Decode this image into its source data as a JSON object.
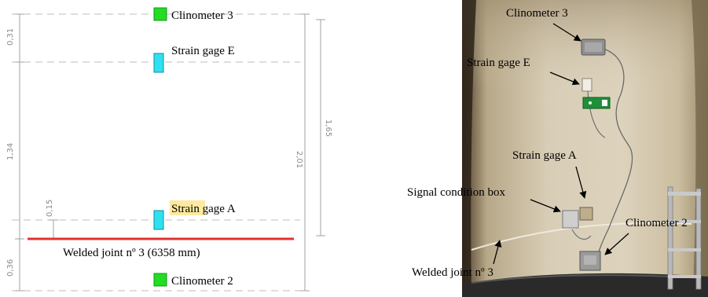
{
  "drawing": {
    "labels": {
      "clinometer_3": "Clinometer 3",
      "strain_gage_e": "Strain gage E",
      "strain_gage_a_highlight": "Strain",
      "strain_gage_a_rest": " gage A",
      "welded_joint": "Welded joint nº 3 (6358 mm)",
      "clinometer_2": "Clinometer 2"
    },
    "dimensions": {
      "d_031": "0,31",
      "d_134": "1,34",
      "d_036": "0,36",
      "d_015": "0,15",
      "d_201": "2,01",
      "d_165": "1,65"
    },
    "colors": {
      "clinometer": "#22dd22",
      "strain_gage": "#2fe0f0",
      "weld_line": "#e53030",
      "highlight": "#fde9a0"
    }
  },
  "photo": {
    "labels": {
      "clinometer_3": "Clinometer 3",
      "strain_gage_e": "Strain gage E",
      "strain_gage_a": "Strain gage A",
      "signal_box": "Signal condition box",
      "clinometer_2": "Clinometer 2",
      "welded_joint": "Welded joint nº 3"
    },
    "icons": [
      "exit-sign-icon",
      "cable-icon",
      "ladder-icon"
    ]
  }
}
